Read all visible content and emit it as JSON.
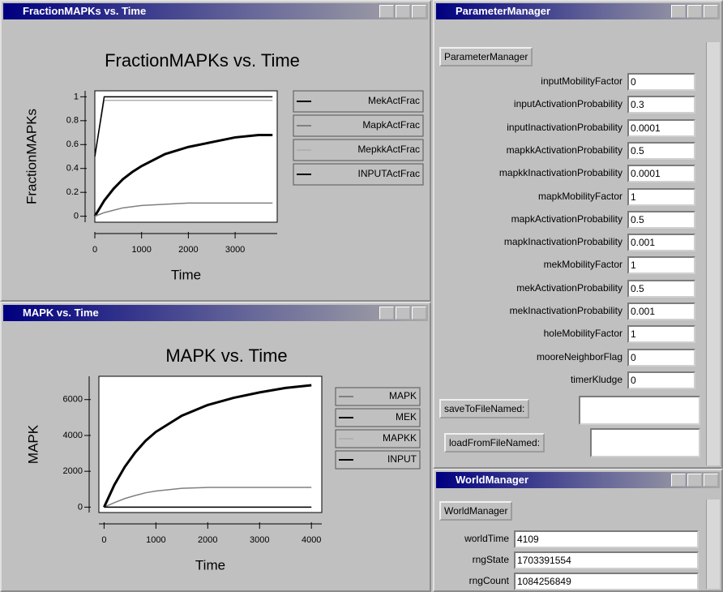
{
  "chart_data": [
    {
      "type": "line",
      "title": "FractionMAPKs vs. Time",
      "x_label": "Time",
      "y_label": "FractionMAPKs",
      "x": [
        0,
        200,
        400,
        600,
        800,
        1000,
        1500,
        2000,
        2500,
        3000,
        3500,
        3800
      ],
      "series": [
        {
          "name": "MekActFrac",
          "color": "#000000",
          "values": [
            0,
            0.13,
            0.23,
            0.31,
            0.37,
            0.42,
            0.52,
            0.58,
            0.62,
            0.66,
            0.68,
            0.68
          ]
        },
        {
          "name": "MapkActFrac",
          "color": "#808080",
          "values": [
            0,
            0.03,
            0.05,
            0.07,
            0.08,
            0.09,
            0.1,
            0.11,
            0.11,
            0.11,
            0.11,
            0.11
          ]
        },
        {
          "name": "MepkkActFrac",
          "color": "#b0b0b0",
          "values": [
            0.5,
            0.97,
            0.97,
            0.97,
            0.97,
            0.97,
            0.97,
            0.97,
            0.97,
            0.97,
            0.97,
            0.97
          ]
        },
        {
          "name": "INPUTActFrac",
          "color": "#000000",
          "values": [
            0.5,
            1,
            1,
            1,
            1,
            1,
            1,
            1,
            1,
            1,
            1,
            1
          ]
        }
      ],
      "xlim": [
        0,
        3900
      ],
      "xticks": [
        0,
        1000,
        2000,
        3000
      ],
      "ylim": [
        -0.05,
        1.05
      ],
      "yticks": [
        0,
        0.2,
        0.4,
        0.6,
        0.8,
        1
      ],
      "legend": "right"
    },
    {
      "type": "line",
      "title": "MAPK vs. Time",
      "x_label": "Time",
      "y_label": "MAPK",
      "x": [
        0,
        200,
        400,
        600,
        800,
        1000,
        1500,
        2000,
        2500,
        3000,
        3500,
        4000
      ],
      "series": [
        {
          "name": "MAPK",
          "color": "#808080",
          "values": [
            0,
            250,
            480,
            650,
            800,
            900,
            1050,
            1100,
            1100,
            1100,
            1100,
            1100
          ]
        },
        {
          "name": "MEK",
          "color": "#000000",
          "values": [
            0,
            1250,
            2250,
            3050,
            3700,
            4200,
            5100,
            5700,
            6100,
            6400,
            6650,
            6800
          ]
        },
        {
          "name": "MAPKK",
          "color": "#b0b0b0",
          "values": [
            0,
            0,
            0,
            0,
            0,
            0,
            0,
            0,
            0,
            0,
            0,
            0
          ]
        },
        {
          "name": "INPUT",
          "color": "#000000",
          "values": [
            0,
            0,
            0,
            0,
            0,
            0,
            0,
            0,
            0,
            0,
            0,
            0
          ]
        }
      ],
      "xlim": [
        -100,
        4200
      ],
      "xticks": [
        0,
        1000,
        2000,
        3000,
        4000
      ],
      "ylim": [
        -300,
        7300
      ],
      "yticks": [
        0,
        2000,
        4000,
        6000
      ],
      "legend": "right"
    }
  ],
  "parameter_manager": {
    "title": "ParameterManager",
    "button": "ParameterManager",
    "params": [
      {
        "label": "inputMobilityFactor",
        "value": "0"
      },
      {
        "label": "inputActivationProbability",
        "value": "0.3"
      },
      {
        "label": "inputInactivationProbability",
        "value": "0.0001"
      },
      {
        "label": "mapkkActivationProbability",
        "value": "0.5"
      },
      {
        "label": "mapkkInactivationProbability",
        "value": "0.0001"
      },
      {
        "label": "mapkMobilityFactor",
        "value": "1"
      },
      {
        "label": "mapkActivationProbability",
        "value": "0.5"
      },
      {
        "label": "mapkInactivationProbability",
        "value": "0.001"
      },
      {
        "label": "mekMobilityFactor",
        "value": "1"
      },
      {
        "label": "mekActivationProbability",
        "value": "0.5"
      },
      {
        "label": "mekInactivationProbability",
        "value": "0.001"
      },
      {
        "label": "holeMobilityFactor",
        "value": "1"
      },
      {
        "label": "mooreNeighborFlag",
        "value": "0"
      },
      {
        "label": "timerKludge",
        "value": "0"
      }
    ],
    "save": "saveToFileNamed:",
    "load": "loadFromFileNamed:"
  },
  "world_manager": {
    "title": "WorldManager",
    "button": "WorldManager",
    "fields": [
      {
        "label": "worldTime",
        "value": "4109"
      },
      {
        "label": "rngState",
        "value": "1703391554"
      },
      {
        "label": "rngCount",
        "value": "1084256849"
      }
    ]
  }
}
